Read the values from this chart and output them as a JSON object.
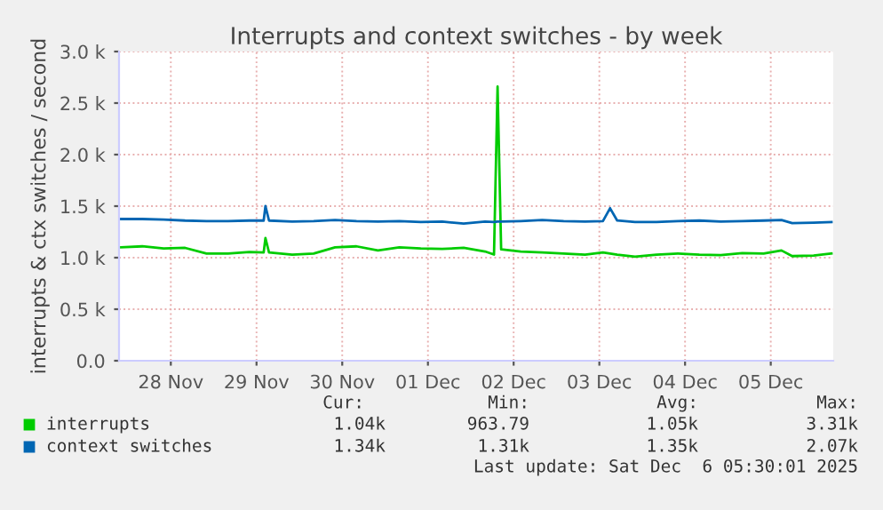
{
  "chart_data": {
    "type": "line",
    "title": "Interrupts and context switches - by week",
    "ylabel": "interrupts & ctx switches / second",
    "x": [
      "2025-11-27T22:00",
      "2025-11-28T04:00",
      "2025-11-28T10:00",
      "2025-11-28T16:00",
      "2025-11-28T22:00",
      "2025-11-29T04:00",
      "2025-11-29T10:00",
      "2025-11-29T14:00",
      "2025-11-29T14:30",
      "2025-11-29T15:30",
      "2025-11-29T22:00",
      "2025-11-30T04:00",
      "2025-11-30T10:00",
      "2025-11-30T16:00",
      "2025-11-30T22:00",
      "2025-12-01T04:00",
      "2025-12-01T10:00",
      "2025-12-01T16:00",
      "2025-12-01T22:00",
      "2025-12-02T04:00",
      "2025-12-02T06:30",
      "2025-12-02T07:30",
      "2025-12-02T08:30",
      "2025-12-02T14:00",
      "2025-12-02T20:00",
      "2025-12-03T02:00",
      "2025-12-03T08:00",
      "2025-12-03T13:00",
      "2025-12-03T15:00",
      "2025-12-03T17:00",
      "2025-12-03T22:00",
      "2025-12-04T04:00",
      "2025-12-04T10:00",
      "2025-12-04T16:00",
      "2025-12-04T22:00",
      "2025-12-05T04:00",
      "2025-12-05T10:00",
      "2025-12-05T15:00",
      "2025-12-05T18:00",
      "2025-12-06T00:00",
      "2025-12-06T05:00"
    ],
    "series": [
      {
        "name": "interrupts",
        "color": "#00cc00",
        "values": [
          1100,
          1110,
          1090,
          1095,
          1040,
          1040,
          1055,
          1050,
          1190,
          1050,
          1030,
          1040,
          1100,
          1110,
          1070,
          1100,
          1090,
          1085,
          1095,
          1060,
          1030,
          2660,
          1080,
          1060,
          1050,
          1040,
          1030,
          1050,
          1040,
          1030,
          1010,
          1030,
          1040,
          1030,
          1025,
          1045,
          1040,
          1070,
          1015,
          1020,
          1040
        ]
      },
      {
        "name": "context switches",
        "color": "#0066b3",
        "values": [
          1375,
          1375,
          1370,
          1360,
          1355,
          1355,
          1360,
          1360,
          1500,
          1360,
          1350,
          1355,
          1365,
          1355,
          1350,
          1355,
          1345,
          1350,
          1330,
          1350,
          1345,
          1350,
          1350,
          1355,
          1365,
          1355,
          1350,
          1355,
          1480,
          1360,
          1345,
          1345,
          1355,
          1360,
          1350,
          1355,
          1360,
          1365,
          1335,
          1340,
          1345
        ]
      }
    ],
    "xlim": [
      "2025-11-27T21:30",
      "2025-12-06T05:30"
    ],
    "xticks": [
      {
        "value": "2025-11-28T12:00",
        "label": "28 Nov"
      },
      {
        "value": "2025-11-29T12:00",
        "label": "29 Nov"
      },
      {
        "value": "2025-11-30T12:00",
        "label": "30 Nov"
      },
      {
        "value": "2025-12-01T12:00",
        "label": "01 Dec"
      },
      {
        "value": "2025-12-02T12:00",
        "label": "02 Dec"
      },
      {
        "value": "2025-12-03T12:00",
        "label": "03 Dec"
      },
      {
        "value": "2025-12-04T12:00",
        "label": "04 Dec"
      },
      {
        "value": "2025-12-05T12:00",
        "label": "05 Dec"
      }
    ],
    "ylim": [
      0,
      3000
    ],
    "yticks": [
      {
        "value": 0,
        "label": "0.0"
      },
      {
        "value": 500,
        "label": "0.5 k"
      },
      {
        "value": 1000,
        "label": "1.0 k"
      },
      {
        "value": 1500,
        "label": "1.5 k"
      },
      {
        "value": 2000,
        "label": "2.0 k"
      },
      {
        "value": 2500,
        "label": "2.5 k"
      },
      {
        "value": 3000,
        "label": "3.0 k"
      }
    ],
    "grid": true,
    "legend": "bottom",
    "marker": "none",
    "line_style": "solid",
    "annotations": [
      "Cur:",
      "Min:",
      "Avg:",
      "Max:",
      "1.04k",
      "963.79",
      "1.05k",
      "3.31k",
      "1.34k",
      "1.31k",
      "1.35k",
      "2.07k",
      "Last update: Sat Dec  6 05:30:01 2025"
    ]
  }
}
